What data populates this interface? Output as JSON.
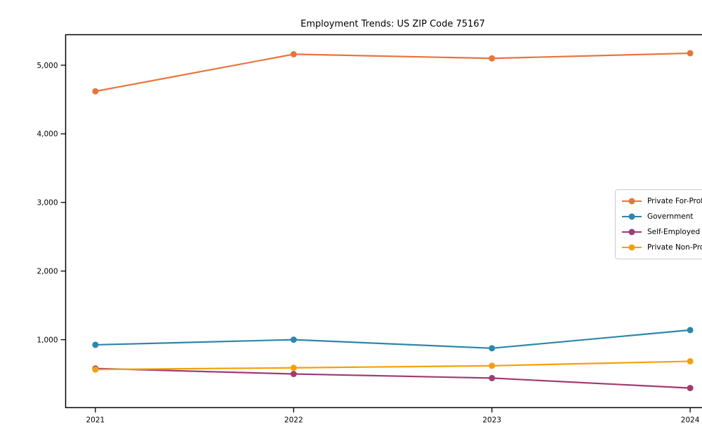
{
  "page": {
    "background": "#ffffff"
  },
  "chart_data": {
    "type": "line",
    "title": "Employment Trends: US ZIP Code 75167",
    "xlabel": "",
    "ylabel": "",
    "categories": [
      2021,
      2022,
      2023,
      2024
    ],
    "series": [
      {
        "name": "Private For-Profit",
        "color": "#E8743B",
        "values": [
          4620,
          5160,
          5100,
          5175
        ]
      },
      {
        "name": "Government",
        "color": "#2E86AB",
        "values": [
          925,
          1000,
          875,
          1140
        ]
      },
      {
        "name": "Self-Employed",
        "color": "#A23B72",
        "values": [
          580,
          500,
          440,
          295
        ]
      },
      {
        "name": "Private Non-Profit",
        "color": "#F1A208",
        "values": [
          565,
          590,
          620,
          685
        ]
      }
    ],
    "xlim": [
      2020.85,
      2024.15
    ],
    "ylim": [
      10,
      5445
    ],
    "yticks": [
      1000,
      2000,
      3000,
      4000,
      5000
    ],
    "ytick_labels": [
      "1,000",
      "2,000",
      "3,000",
      "4,000",
      "5,000"
    ],
    "grid": false,
    "legend": {
      "position": "center-right",
      "frame": true,
      "marker": "circle-on-line"
    }
  }
}
